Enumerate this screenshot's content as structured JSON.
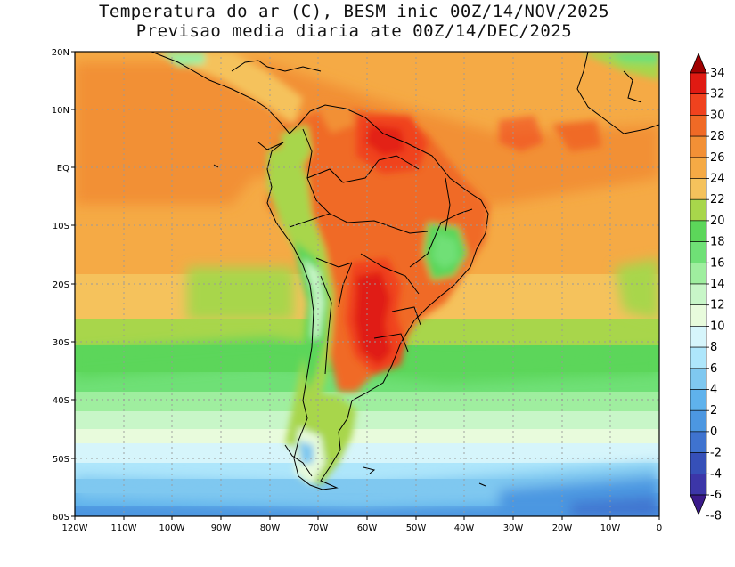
{
  "title": {
    "line1": "Temperatura do ar (C), BESM inic 00Z/14/NOV/2025",
    "line2": "Previsao media diaria ate 00Z/14/DEC/2025"
  },
  "axes": {
    "lat_labels": [
      "20N",
      "10N",
      "EQ",
      "10S",
      "20S",
      "30S",
      "40S",
      "50S",
      "60S"
    ],
    "lon_labels": [
      "120W",
      "110W",
      "100W",
      "90W",
      "80W",
      "70W",
      "60W",
      "50W",
      "40W",
      "30W",
      "20W",
      "10W",
      "0"
    ]
  },
  "colorbar": {
    "labels": [
      "34",
      "32",
      "30",
      "28",
      "26",
      "24",
      "22",
      "20",
      "18",
      "16",
      "14",
      "12",
      "10",
      "8",
      "6",
      "4",
      "2",
      "0",
      "-2",
      "-4",
      "-6",
      "-8"
    ],
    "colors": [
      "#a00000",
      "#e01a12",
      "#f0421e",
      "#f06a26",
      "#f29036",
      "#f5aa45",
      "#f5c25c",
      "#a8d64b",
      "#5cd65a",
      "#6fe076",
      "#9fee9f",
      "#c8f6c8",
      "#e8fbdc",
      "#d6f5fb",
      "#aee6fb",
      "#7fc8f0",
      "#5fb2ec",
      "#4c97e1",
      "#3f73cf",
      "#3650b8",
      "#3c36a8",
      "#3a1a8a"
    ]
  }
}
